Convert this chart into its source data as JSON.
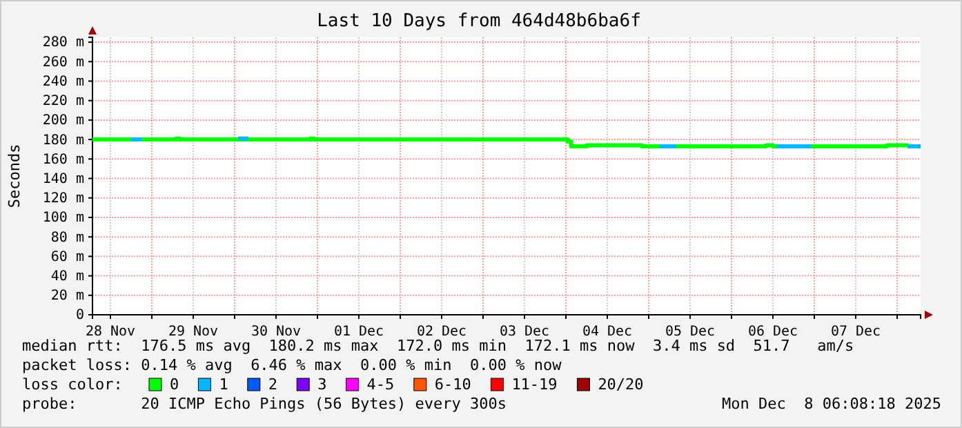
{
  "chart_data": {
    "type": "step",
    "title": "Last 10 Days from 464d48b6ba6f",
    "ylabel": "Seconds",
    "xlim": [
      "2025-11-28T06:48",
      "2025-12-08T06:48"
    ],
    "xticks": [
      {
        "value": "2025-11-28T12:00",
        "label": "28 Nov"
      },
      {
        "value": "2025-11-29T00:00",
        "label": null
      },
      {
        "value": "2025-11-29T12:00",
        "label": "29 Nov"
      },
      {
        "value": "2025-11-30T00:00",
        "label": null
      },
      {
        "value": "2025-11-30T12:00",
        "label": "30 Nov"
      },
      {
        "value": "2025-12-01T00:00",
        "label": null
      },
      {
        "value": "2025-12-01T12:00",
        "label": "01 Dec"
      },
      {
        "value": "2025-12-02T00:00",
        "label": null
      },
      {
        "value": "2025-12-02T12:00",
        "label": "02 Dec"
      },
      {
        "value": "2025-12-03T00:00",
        "label": null
      },
      {
        "value": "2025-12-03T12:00",
        "label": "03 Dec"
      },
      {
        "value": "2025-12-04T00:00",
        "label": null
      },
      {
        "value": "2025-12-04T12:00",
        "label": "04 Dec"
      },
      {
        "value": "2025-12-05T00:00",
        "label": null
      },
      {
        "value": "2025-12-05T12:00",
        "label": "05 Dec"
      },
      {
        "value": "2025-12-06T00:00",
        "label": null
      },
      {
        "value": "2025-12-06T12:00",
        "label": "06 Dec"
      },
      {
        "value": "2025-12-07T00:00",
        "label": null
      },
      {
        "value": "2025-12-07T12:00",
        "label": "07 Dec"
      },
      {
        "value": "2025-12-08T00:00",
        "label": null
      }
    ],
    "ylim": [
      0,
      285
    ],
    "yticks": [
      0,
      {
        "value": 20,
        "label": "20 m"
      },
      {
        "value": 40,
        "label": "40 m"
      },
      {
        "value": 60,
        "label": "60 m"
      },
      {
        "value": 80,
        "label": "80 m"
      },
      {
        "value": 100,
        "label": "100 m"
      },
      {
        "value": 120,
        "label": "120 m"
      },
      {
        "value": 140,
        "label": "140 m"
      },
      {
        "value": 160,
        "label": "160 m"
      },
      {
        "value": 180,
        "label": "180 m"
      },
      {
        "value": 200,
        "label": "200 m"
      },
      {
        "value": 220,
        "label": "220 m"
      },
      {
        "value": 240,
        "label": "240 m"
      },
      {
        "value": 260,
        "label": "260 m"
      },
      {
        "value": 280,
        "label": "280 m"
      }
    ],
    "grid": true,
    "legend": "bottom",
    "legend_title": "loss color:",
    "series": [
      {
        "name": "0",
        "color": "#00ff00",
        "x": [
          "2025-11-28T06:48",
          "2025-11-29T07:00",
          "2025-11-29T08:00",
          "2025-11-30T22:00",
          "2025-11-30T23:00",
          "2025-12-04T00:30",
          "2025-12-04T01:30",
          "2025-12-04T06:00",
          "2025-12-04T22:00",
          "2025-12-06T10:00",
          "2025-12-06T12:00",
          "2025-12-07T21:00",
          "2025-12-08T03:00"
        ],
        "values": [
          180,
          181,
          180,
          181,
          180,
          178,
          173,
          174,
          173,
          174,
          173,
          174,
          173
        ]
      },
      {
        "name": "1",
        "color": "#00b8ff",
        "x": [
          "2025-11-28T18:00",
          "2025-11-28T21:00",
          "2025-11-28T22:00",
          "2025-11-30T01:00",
          "2025-11-30T04:00",
          "2025-11-30T05:00",
          "2025-12-05T03:00",
          "2025-12-05T08:00",
          "2025-12-05T09:00",
          "2025-12-06T13:00",
          "2025-12-06T23:00",
          "2025-12-07T00:00",
          "2025-12-08T03:00",
          "2025-12-08T06:48"
        ],
        "values": [
          180,
          180,
          null,
          181,
          181,
          null,
          173,
          173,
          null,
          173,
          173,
          null,
          173,
          173
        ]
      },
      {
        "name": "2",
        "color": "#0059ff"
      },
      {
        "name": "3",
        "color": "#7e00ff"
      },
      {
        "name": "4-5",
        "color": "#ff00ff"
      },
      {
        "name": "6-10",
        "color": "#ff5500"
      },
      {
        "name": "11-19",
        "color": "#ff0000"
      },
      {
        "name": "20/20",
        "color": "#a10000"
      }
    ],
    "annotations": [
      "median rtt:  176.5 ms avg  180.2 ms max  172.0 ms min  172.1 ms now  3.4 ms sd  51.7   am/s",
      "packet loss: 0.14 % avg  6.46 % max  0.00 % min  0.00 % now",
      "probe:       20 ICMP Echo Pings (56 Bytes) every 300s",
      "Mon Dec  8 06:08:18 2025"
    ]
  }
}
